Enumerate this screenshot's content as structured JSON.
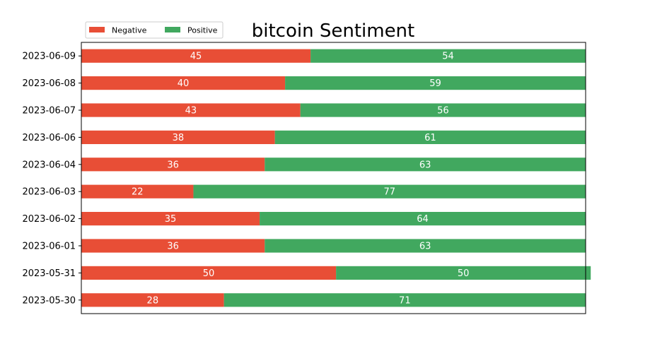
{
  "chart_data": {
    "type": "bar",
    "orientation": "horizontal",
    "stacked": true,
    "title": "bitcoin Sentiment",
    "xlabel": "",
    "ylabel": "",
    "categories": [
      "2023-05-30",
      "2023-05-31",
      "2023-06-01",
      "2023-06-02",
      "2023-06-03",
      "2023-06-04",
      "2023-06-06",
      "2023-06-07",
      "2023-06-08",
      "2023-06-09"
    ],
    "series": [
      {
        "name": "Negative",
        "color": "#e84e36",
        "values": [
          28,
          50,
          36,
          35,
          22,
          36,
          38,
          43,
          40,
          45
        ]
      },
      {
        "name": "Positive",
        "color": "#41a85f",
        "values": [
          71,
          50,
          63,
          64,
          77,
          63,
          61,
          56,
          59,
          54
        ]
      }
    ],
    "xlim": [
      0,
      99
    ],
    "grid": false,
    "legend_position": "top-left"
  }
}
